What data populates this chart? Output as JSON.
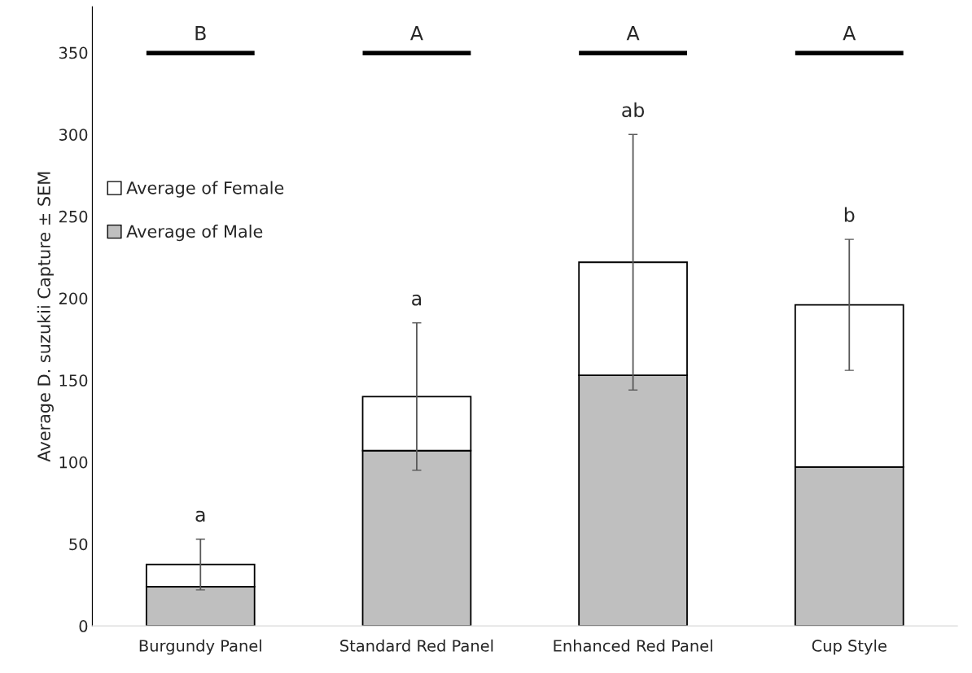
{
  "chart_data": {
    "type": "bar",
    "stacked": true,
    "categories": [
      "Burgundy Panel",
      "Standard Red Panel",
      "Enhanced Red Panel",
      "Cup Style"
    ],
    "ylabel": "Average D. suzukii Capture ± SEM",
    "ylim": [
      0,
      378
    ],
    "yticks": [
      0,
      50,
      100,
      150,
      200,
      250,
      300,
      350
    ],
    "series": [
      {
        "name": "Average of Male",
        "color": "#bfbfbf",
        "values": [
          24,
          107,
          153,
          97
        ]
      },
      {
        "name": "Average of Female",
        "color": "#ffffff",
        "values": [
          13.5,
          33,
          69,
          99
        ],
        "errors": [
          15.5,
          45,
          78,
          40
        ]
      }
    ],
    "annotations": [
      {
        "text": "a",
        "x": "Burgundy Panel",
        "y": 53
      },
      {
        "text": "a",
        "x": "Standard Red Panel",
        "y": 185
      },
      {
        "text": "ab",
        "x": "Enhanced Red Panel",
        "y": 300
      },
      {
        "text": "b",
        "x": "Cup Style",
        "y": 236
      },
      "B",
      "A",
      "A",
      "A"
    ],
    "legend": "center left",
    "grid": false
  }
}
